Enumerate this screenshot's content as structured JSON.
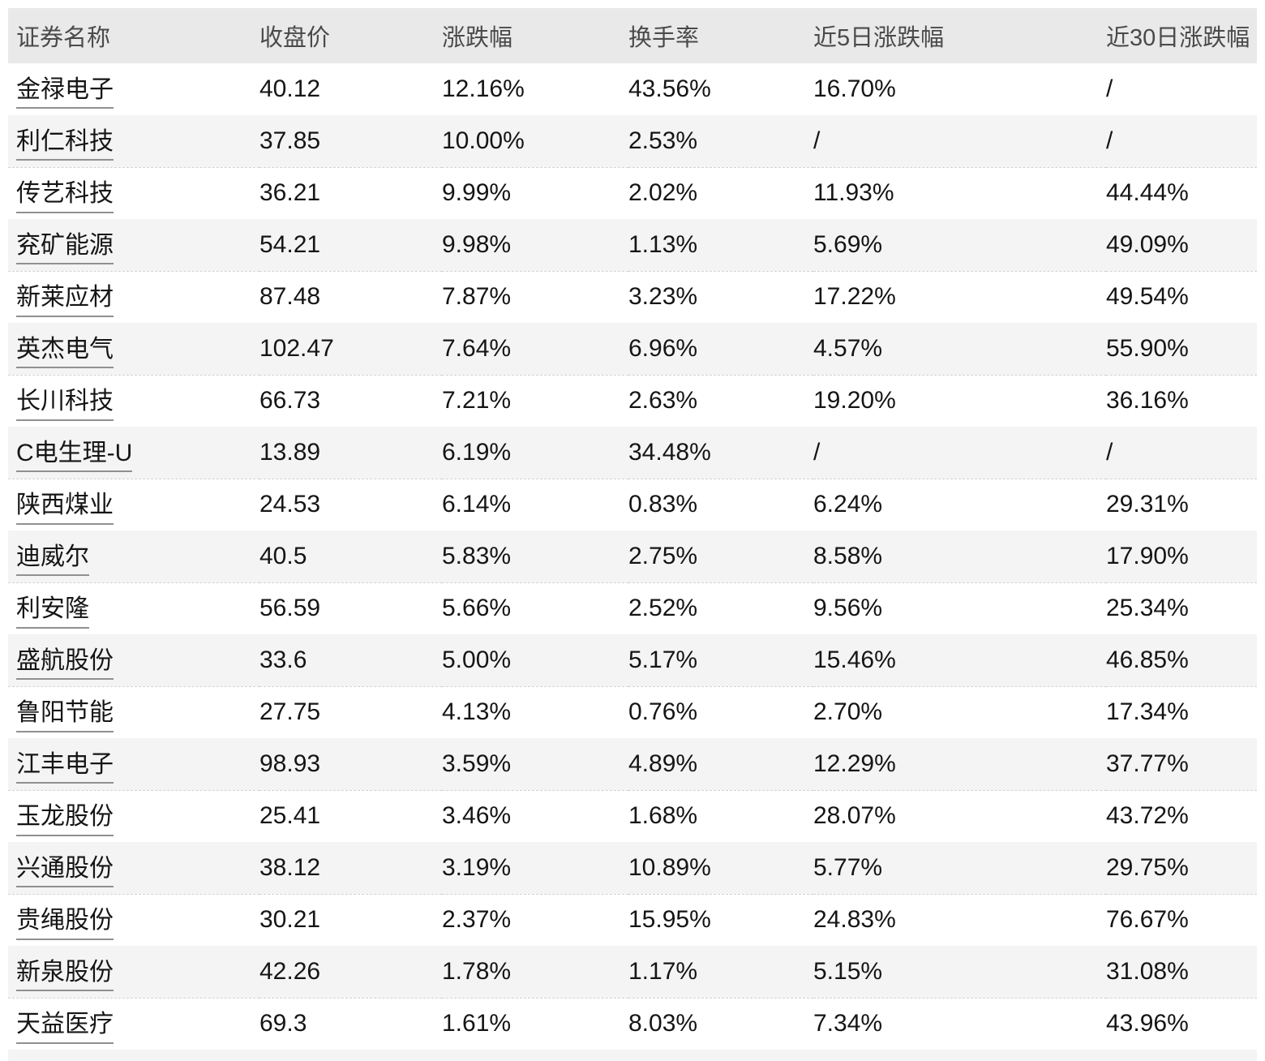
{
  "chart_data": {
    "type": "table",
    "columns": [
      "证券名称",
      "收盘价",
      "涨跌幅",
      "换手率",
      "近5日涨跌幅",
      "近30日涨跌幅"
    ],
    "rows": [
      [
        "金禄电子",
        "40.12",
        "12.16%",
        "43.56%",
        "16.70%",
        "/"
      ],
      [
        "利仁科技",
        "37.85",
        "10.00%",
        "2.53%",
        "/",
        "/"
      ],
      [
        "传艺科技",
        "36.21",
        "9.99%",
        "2.02%",
        "11.93%",
        "44.44%"
      ],
      [
        "兖矿能源",
        "54.21",
        "9.98%",
        "1.13%",
        "5.69%",
        "49.09%"
      ],
      [
        "新莱应材",
        "87.48",
        "7.87%",
        "3.23%",
        "17.22%",
        "49.54%"
      ],
      [
        "英杰电气",
        "102.47",
        "7.64%",
        "6.96%",
        "4.57%",
        "55.90%"
      ],
      [
        "长川科技",
        "66.73",
        "7.21%",
        "2.63%",
        "19.20%",
        "36.16%"
      ],
      [
        "C电生理-U",
        "13.89",
        "6.19%",
        "34.48%",
        "/",
        "/"
      ],
      [
        "陕西煤业",
        "24.53",
        "6.14%",
        "0.83%",
        "6.24%",
        "29.31%"
      ],
      [
        "迪威尔",
        "40.5",
        "5.83%",
        "2.75%",
        "8.58%",
        "17.90%"
      ],
      [
        "利安隆",
        "56.59",
        "5.66%",
        "2.52%",
        "9.56%",
        "25.34%"
      ],
      [
        "盛航股份",
        "33.6",
        "5.00%",
        "5.17%",
        "15.46%",
        "46.85%"
      ],
      [
        "鲁阳节能",
        "27.75",
        "4.13%",
        "0.76%",
        "2.70%",
        "17.34%"
      ],
      [
        "江丰电子",
        "98.93",
        "3.59%",
        "4.89%",
        "12.29%",
        "37.77%"
      ],
      [
        "玉龙股份",
        "25.41",
        "3.46%",
        "1.68%",
        "28.07%",
        "43.72%"
      ],
      [
        "兴通股份",
        "38.12",
        "3.19%",
        "10.89%",
        "5.77%",
        "29.75%"
      ],
      [
        "贵绳股份",
        "30.21",
        "2.37%",
        "15.95%",
        "24.83%",
        "76.67%"
      ],
      [
        "新泉股份",
        "42.26",
        "1.78%",
        "1.17%",
        "5.15%",
        "31.08%"
      ],
      [
        "天益医疗",
        "69.3",
        "1.61%",
        "8.03%",
        "7.34%",
        "43.96%"
      ]
    ],
    "title": "",
    "layout_hints": {
      "striped_rows": "even rows shaded",
      "row_group_divider": "dashed line after each even row",
      "alignment": "all columns left-aligned"
    }
  },
  "colors": {
    "header_bg": "#e9e9e9",
    "stripe_bg": "#f4f4f4",
    "header_text": "#4a4a4a",
    "body_text": "#151515",
    "underline": "#909090",
    "divider": "#d2d2d2",
    "page_bg": "#ffffff"
  }
}
